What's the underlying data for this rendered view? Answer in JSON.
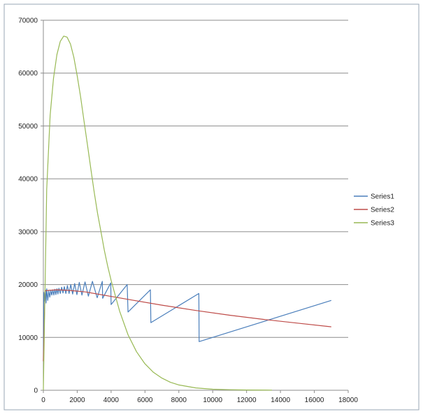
{
  "chart_data": {
    "type": "line",
    "title": "",
    "xlabel": "",
    "ylabel": "",
    "xlim": [
      0,
      18000
    ],
    "ylim": [
      0,
      70000
    ],
    "x_ticks": [
      0,
      2000,
      4000,
      6000,
      8000,
      10000,
      12000,
      14000,
      16000,
      18000
    ],
    "y_ticks": [
      0,
      10000,
      20000,
      30000,
      40000,
      50000,
      60000,
      70000
    ],
    "grid": "horizontal major gridlines",
    "legend_position": "right",
    "series": [
      {
        "name": "Series1",
        "color": "#4a7ebb",
        "points": [
          [
            0,
            5500
          ],
          [
            30,
            18500
          ],
          [
            80,
            16800
          ],
          [
            120,
            19000
          ],
          [
            160,
            16500
          ],
          [
            200,
            19200
          ],
          [
            260,
            17000
          ],
          [
            320,
            18800
          ],
          [
            380,
            17600
          ],
          [
            440,
            18900
          ],
          [
            500,
            18000
          ],
          [
            560,
            19000
          ],
          [
            620,
            18000
          ],
          [
            680,
            19100
          ],
          [
            740,
            18100
          ],
          [
            800,
            19200
          ],
          [
            860,
            18200
          ],
          [
            920,
            19300
          ],
          [
            1000,
            18300
          ],
          [
            1080,
            19500
          ],
          [
            1160,
            18400
          ],
          [
            1240,
            19600
          ],
          [
            1330,
            18300
          ],
          [
            1420,
            19800
          ],
          [
            1520,
            18300
          ],
          [
            1620,
            20000
          ],
          [
            1730,
            18200
          ],
          [
            1850,
            20200
          ],
          [
            1980,
            18100
          ],
          [
            2120,
            20400
          ],
          [
            2280,
            18000
          ],
          [
            2460,
            20500
          ],
          [
            2660,
            17800
          ],
          [
            2900,
            20600
          ],
          [
            3180,
            17500
          ],
          [
            3480,
            20600
          ],
          [
            3500,
            17400
          ],
          [
            3980,
            20300
          ],
          [
            4000,
            16200
          ],
          [
            4950,
            20000
          ],
          [
            5000,
            14800
          ],
          [
            6320,
            19000
          ],
          [
            6350,
            12800
          ],
          [
            9180,
            18300
          ],
          [
            9200,
            9200
          ],
          [
            17000,
            17000
          ]
        ]
      },
      {
        "name": "Series2",
        "color": "#be4b48",
        "points": [
          [
            0,
            5500
          ],
          [
            100,
            18800
          ],
          [
            300,
            18900
          ],
          [
            800,
            19000
          ],
          [
            1500,
            18900
          ],
          [
            2500,
            18600
          ],
          [
            5000,
            17200
          ],
          [
            7000,
            16100
          ],
          [
            9000,
            15100
          ],
          [
            11000,
            14200
          ],
          [
            13000,
            13400
          ],
          [
            15000,
            12700
          ],
          [
            17000,
            12000
          ]
        ]
      },
      {
        "name": "Series3",
        "color": "#98b954",
        "points": [
          [
            0,
            0
          ],
          [
            200,
            38000
          ],
          [
            400,
            52000
          ],
          [
            600,
            59000
          ],
          [
            800,
            63500
          ],
          [
            1000,
            66000
          ],
          [
            1200,
            67000
          ],
          [
            1400,
            66800
          ],
          [
            1600,
            65500
          ],
          [
            1800,
            63000
          ],
          [
            2000,
            59500
          ],
          [
            2200,
            55500
          ],
          [
            2400,
            51000
          ],
          [
            2600,
            46500
          ],
          [
            2800,
            42000
          ],
          [
            3000,
            37500
          ],
          [
            3200,
            33500
          ],
          [
            3400,
            30000
          ],
          [
            3600,
            26500
          ],
          [
            3800,
            23500
          ],
          [
            4000,
            20800
          ],
          [
            4500,
            15000
          ],
          [
            5000,
            10500
          ],
          [
            5500,
            7300
          ],
          [
            6000,
            5000
          ],
          [
            6500,
            3400
          ],
          [
            7000,
            2300
          ],
          [
            7500,
            1500
          ],
          [
            8000,
            1000
          ],
          [
            9000,
            450
          ],
          [
            10000,
            200
          ],
          [
            11000,
            100
          ],
          [
            12000,
            50
          ],
          [
            13500,
            20
          ]
        ]
      }
    ]
  }
}
